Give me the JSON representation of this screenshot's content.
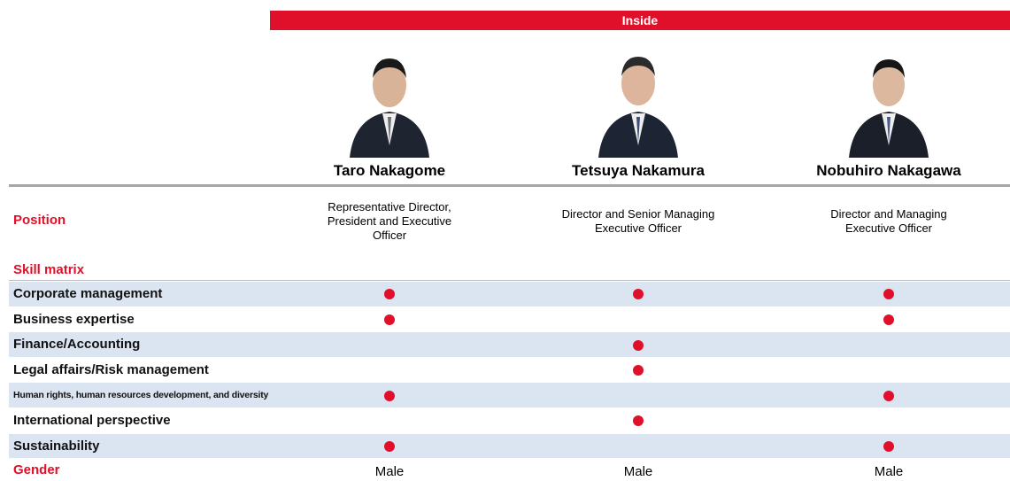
{
  "header": {
    "group": "Inside"
  },
  "labels": {
    "position": "Position",
    "skill_matrix": "Skill matrix",
    "gender": "Gender"
  },
  "people": [
    {
      "name": "Taro Nakagome",
      "position": "Representative Director, President and Executive Officer",
      "gender": "Male"
    },
    {
      "name": "Tetsuya Nakamura",
      "position": "Director and Senior Managing Executive Officer",
      "gender": "Male"
    },
    {
      "name": "Nobuhiro Nakagawa",
      "position": "Director and Managing Executive Officer",
      "gender": "Male"
    }
  ],
  "skills": [
    {
      "name": "Corporate management",
      "marks": [
        true,
        true,
        true
      ]
    },
    {
      "name": "Business expertise",
      "marks": [
        true,
        false,
        true
      ]
    },
    {
      "name": "Finance/Accounting",
      "marks": [
        false,
        true,
        false
      ]
    },
    {
      "name": "Legal affairs/Risk management",
      "marks": [
        false,
        true,
        false
      ]
    },
    {
      "name": "Human rights, human resources development, and diversity",
      "marks": [
        true,
        false,
        true
      ]
    },
    {
      "name": "International perspective",
      "marks": [
        false,
        true,
        false
      ]
    },
    {
      "name": "Sustainability",
      "marks": [
        true,
        false,
        true
      ]
    }
  ]
}
